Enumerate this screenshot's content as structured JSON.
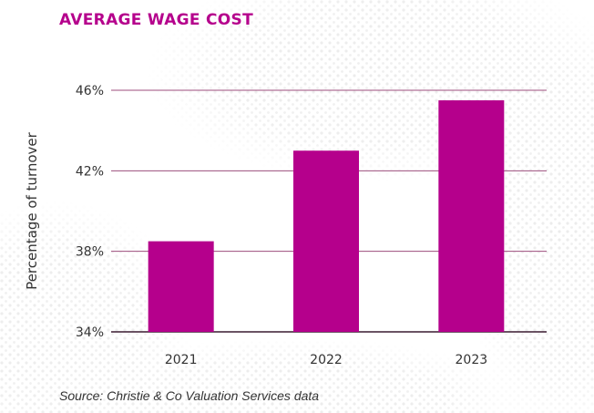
{
  "colors": {
    "accent": "#b5008c",
    "grid": "#9c4d7c",
    "text": "#333333",
    "dots": "#e9e9e9"
  },
  "chart_data": {
    "type": "bar",
    "title": "AVERAGE WAGE COST",
    "categories": [
      "2021",
      "2022",
      "2023"
    ],
    "values": [
      38.5,
      43.0,
      45.5
    ],
    "ylabel": "Percentage of turnover",
    "ylim": [
      34,
      46
    ],
    "yticks": [
      34,
      38,
      42,
      46
    ],
    "ytick_labels": [
      "34%",
      "38%",
      "42%",
      "46%"
    ],
    "grid": true,
    "source": "Source: Christie & Co Valuation Services data"
  }
}
